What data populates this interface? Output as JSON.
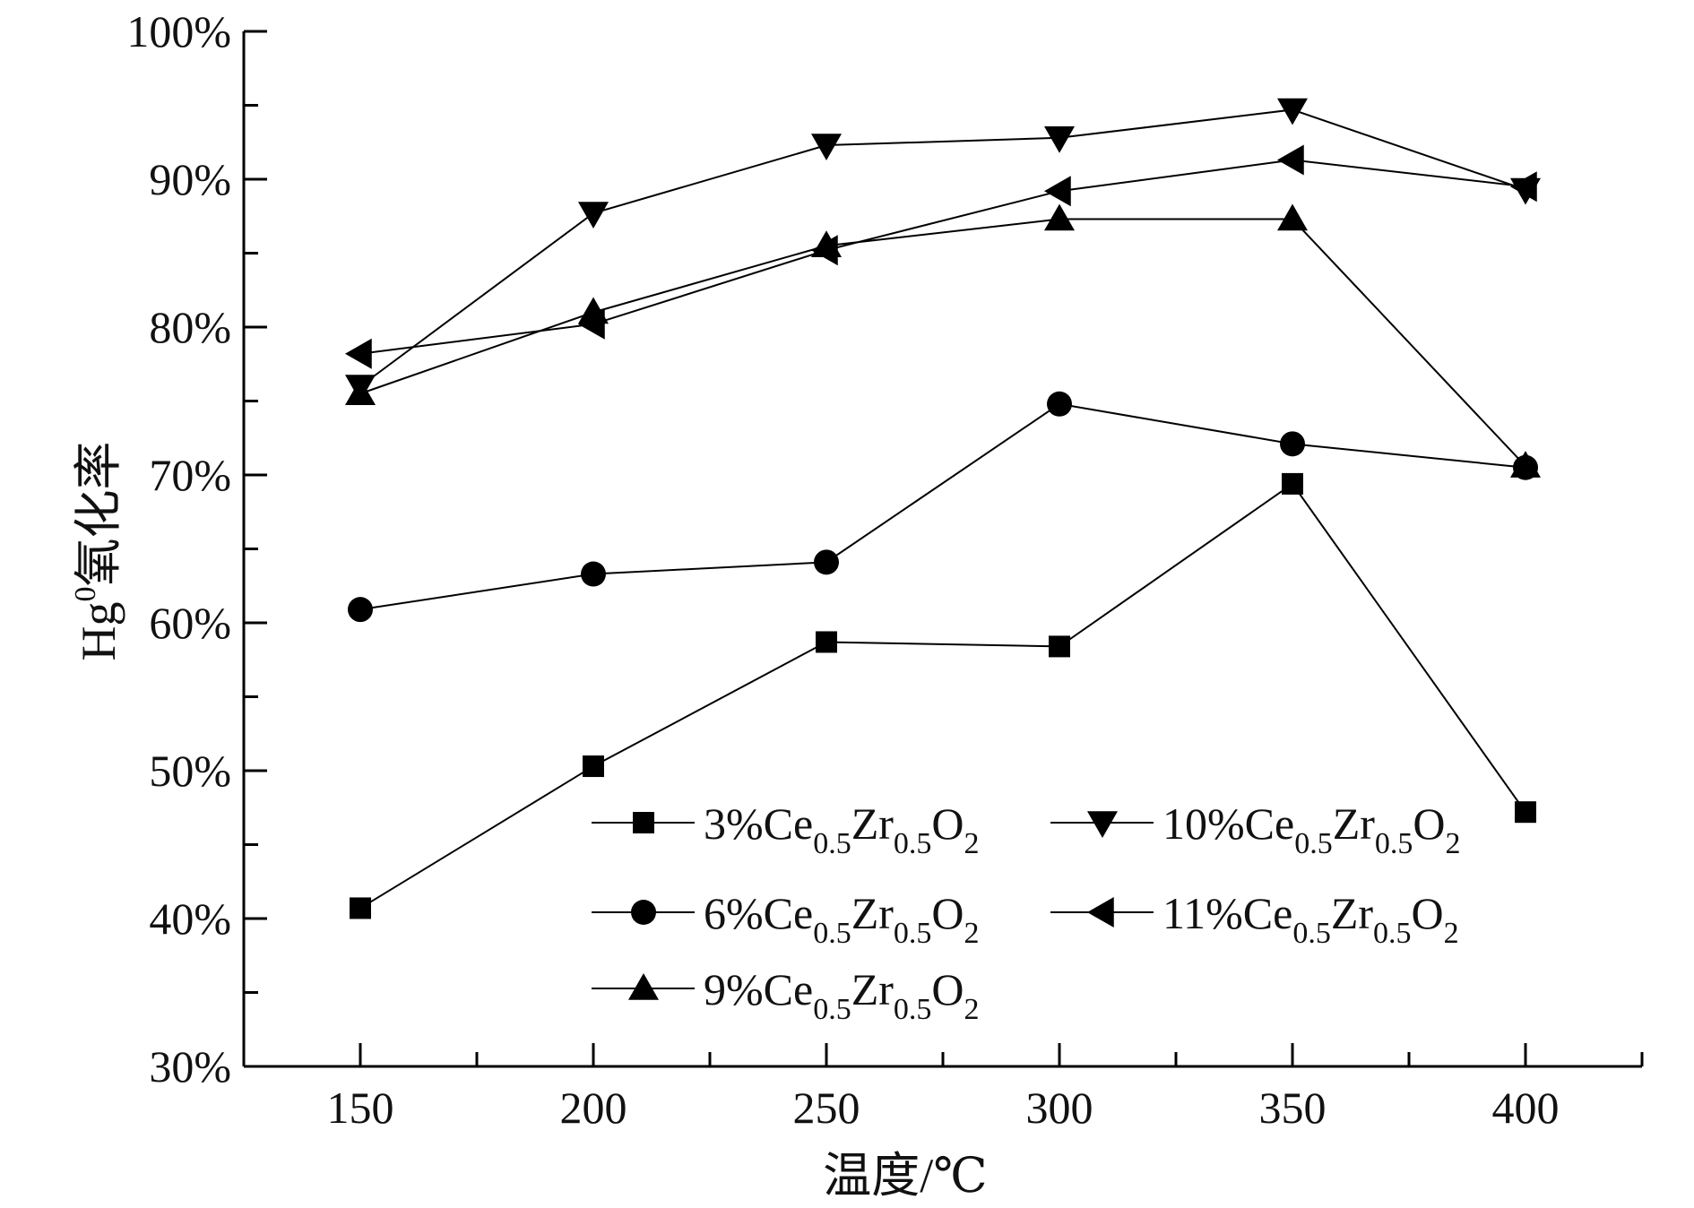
{
  "chart_data": {
    "type": "line",
    "x": [
      150,
      200,
      250,
      300,
      350,
      400
    ],
    "xlim": [
      125,
      425
    ],
    "ylim": [
      30,
      100
    ],
    "xticks": [
      "150",
      "200",
      "250",
      "300",
      "350",
      "400"
    ],
    "yticks": [
      "30%",
      "40%",
      "50%",
      "60%",
      "70%",
      "80%",
      "90%",
      "100%"
    ],
    "xlabel": "温度/℃",
    "ylabel": {
      "base": "Hg",
      "sup": "0",
      "rest": "氧化率"
    },
    "grid": false,
    "legend_position": "bottom-center",
    "series": [
      {
        "name": "3%Ce0.5Zr0.5O2",
        "label": {
          "a": "3%Ce",
          "s1": "0.5",
          "b": "Zr",
          "s2": "0.5",
          "c": "O",
          "s3": "2"
        },
        "marker": "square",
        "values": [
          40.7,
          50.3,
          58.7,
          58.4,
          69.4,
          47.2
        ]
      },
      {
        "name": "6%Ce0.5Zr0.5O2",
        "label": {
          "a": "6%Ce",
          "s1": "0.5",
          "b": "Zr",
          "s2": "0.5",
          "c": "O",
          "s3": "2"
        },
        "marker": "circle",
        "values": [
          60.9,
          63.3,
          64.1,
          74.8,
          72.1,
          70.5
        ]
      },
      {
        "name": "9%Ce0.5Zr0.5O2",
        "label": {
          "a": "9%Ce",
          "s1": "0.5",
          "b": "Zr",
          "s2": "0.5",
          "c": "O",
          "s3": "2"
        },
        "marker": "triangle-up",
        "values": [
          75.5,
          81.0,
          85.5,
          87.3,
          87.3,
          70.6
        ]
      },
      {
        "name": "10%Ce0.5Zr0.5O2",
        "label": {
          "a": "10%Ce",
          "s1": "0.5",
          "b": "Zr",
          "s2": "0.5",
          "c": "O",
          "s3": "2"
        },
        "marker": "triangle-down",
        "values": [
          76.0,
          87.7,
          92.3,
          92.8,
          94.7,
          89.3
        ]
      },
      {
        "name": "11%Ce0.5Zr0.5O2",
        "label": {
          "a": "11%Ce",
          "s1": "0.5",
          "b": "Zr",
          "s2": "0.5",
          "c": "O",
          "s3": "2"
        },
        "marker": "triangle-left",
        "values": [
          78.2,
          80.2,
          85.2,
          89.2,
          91.3,
          89.5
        ]
      }
    ],
    "colors": {
      "line": "#000000",
      "marker": "#000000",
      "axis": "#000000"
    }
  }
}
